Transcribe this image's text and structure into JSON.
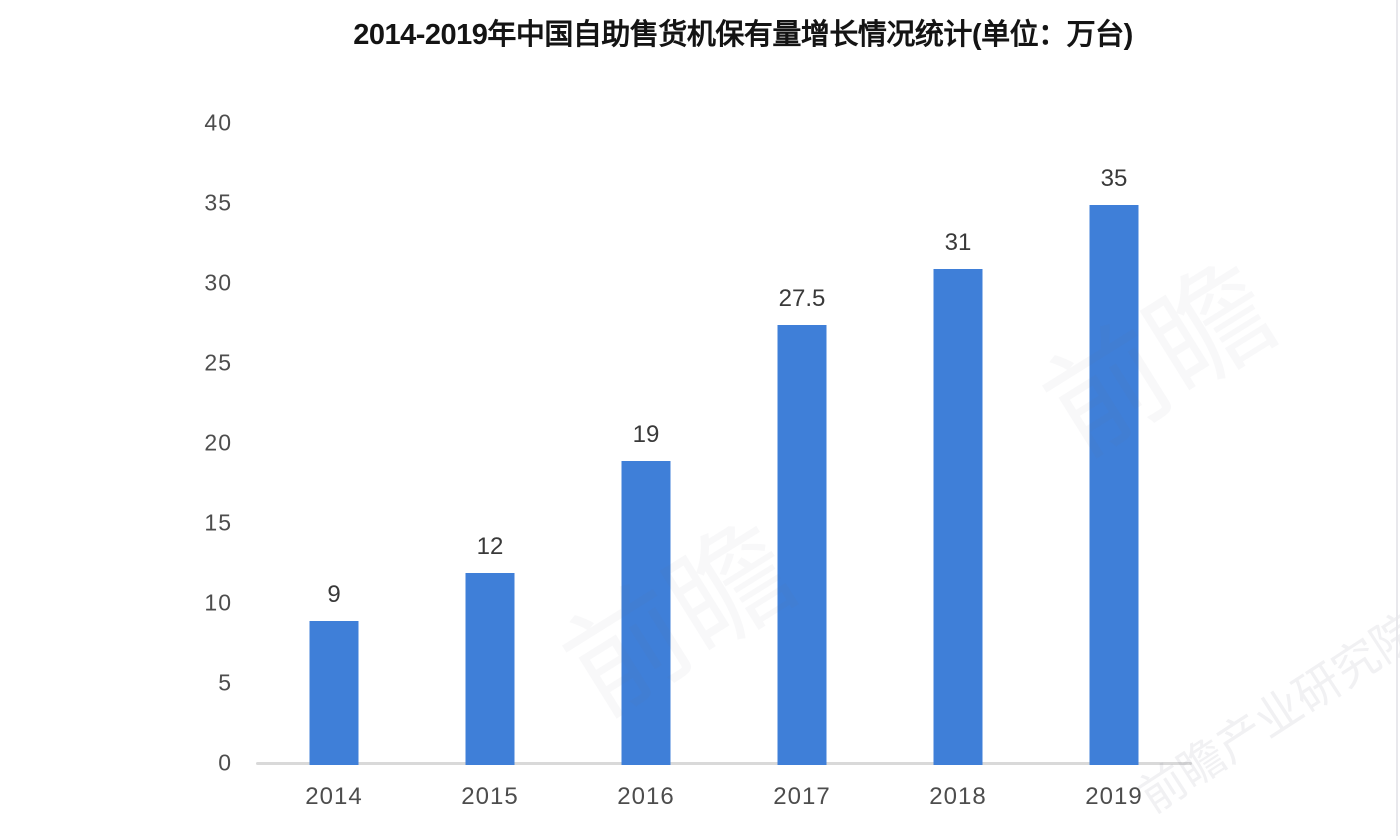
{
  "chart_data": {
    "type": "bar",
    "title": "2014-2019年中国自助售货机保有量增长情况统计(单位：万台)",
    "categories": [
      "2014",
      "2015",
      "2016",
      "2017",
      "2018",
      "2019"
    ],
    "values": [
      9,
      12,
      19,
      27.5,
      31,
      35
    ],
    "value_labels": [
      "9",
      "12",
      "19",
      "27.5",
      "31",
      "35"
    ],
    "xlabel": "",
    "ylabel": "",
    "ylim": [
      0,
      40
    ],
    "yticks": [
      0,
      5,
      10,
      15,
      20,
      25,
      30,
      35,
      40
    ],
    "grid": false,
    "legend": false,
    "bar_color": "#3f7fd8",
    "axis_line_color": "#d9d9d9",
    "tick_label_color": "#4d4d4d",
    "value_label_color": "#393939",
    "title_color": "#141414"
  },
  "watermark": {
    "brand_short": "前瞻",
    "brand_full": "前瞻产业研究院"
  }
}
